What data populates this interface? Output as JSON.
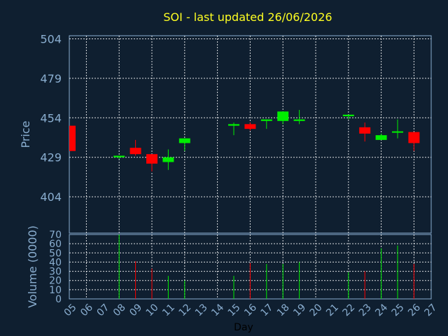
{
  "chart_data": {
    "type": "candlestick",
    "title": "SOI - last updated 26/06/2026",
    "xlabel": "Day",
    "price_panel": {
      "ylabel": "Price",
      "ylim": [
        381,
        506
      ],
      "yticks": [
        404,
        429,
        454,
        479,
        504
      ],
      "grid": true
    },
    "volume_panel": {
      "ylabel": "Volume (0000)",
      "ylim": [
        0,
        70
      ],
      "yticks": [
        0,
        10,
        20,
        30,
        40,
        50,
        60,
        70
      ],
      "grid": true
    },
    "x_ticks": [
      "05",
      "06",
      "07",
      "08",
      "09",
      "10",
      "11",
      "12",
      "13",
      "14",
      "15",
      "16",
      "17",
      "18",
      "19",
      "20",
      "21",
      "22",
      "23",
      "24",
      "25",
      "26",
      "27"
    ],
    "colors": {
      "up": "#00ee00",
      "down": "#ff0000"
    },
    "candles": [
      {
        "day": "05",
        "open": 449,
        "high": 449,
        "low": 433,
        "close": 433,
        "volume": 0
      },
      {
        "day": "08",
        "open": 429,
        "high": 430,
        "low": 428,
        "close": 430,
        "volume": 70
      },
      {
        "day": "09",
        "open": 435,
        "high": 440,
        "low": 430,
        "close": 431,
        "volume": 41
      },
      {
        "day": "10",
        "open": 431,
        "high": 431,
        "low": 420,
        "close": 425,
        "volume": 33
      },
      {
        "day": "11",
        "open": 426,
        "high": 434,
        "low": 421,
        "close": 429,
        "volume": 25
      },
      {
        "day": "12",
        "open": 438,
        "high": 441,
        "low": 433,
        "close": 441,
        "volume": 20
      },
      {
        "day": "15",
        "open": 449,
        "high": 451,
        "low": 443,
        "close": 450,
        "volume": 25
      },
      {
        "day": "16",
        "open": 450,
        "high": 451,
        "low": 446,
        "close": 447,
        "volume": 39
      },
      {
        "day": "17",
        "open": 452,
        "high": 453,
        "low": 447,
        "close": 453,
        "volume": 38
      },
      {
        "day": "18",
        "open": 452,
        "high": 458,
        "low": 450,
        "close": 458,
        "volume": 38
      },
      {
        "day": "19",
        "open": 452,
        "high": 459,
        "low": 450,
        "close": 453,
        "volume": 40
      },
      {
        "day": "22",
        "open": 455,
        "high": 456,
        "low": 453,
        "close": 456,
        "volume": 29
      },
      {
        "day": "23",
        "open": 448,
        "high": 451,
        "low": 439,
        "close": 444,
        "volume": 30
      },
      {
        "day": "24",
        "open": 440,
        "high": 444,
        "low": 440,
        "close": 443,
        "volume": 55
      },
      {
        "day": "25",
        "open": 445,
        "high": 453,
        "low": 441,
        "close": 445,
        "volume": 58
      },
      {
        "day": "26",
        "open": 445,
        "high": 445,
        "low": 433,
        "close": 438,
        "volume": 38
      }
    ]
  }
}
